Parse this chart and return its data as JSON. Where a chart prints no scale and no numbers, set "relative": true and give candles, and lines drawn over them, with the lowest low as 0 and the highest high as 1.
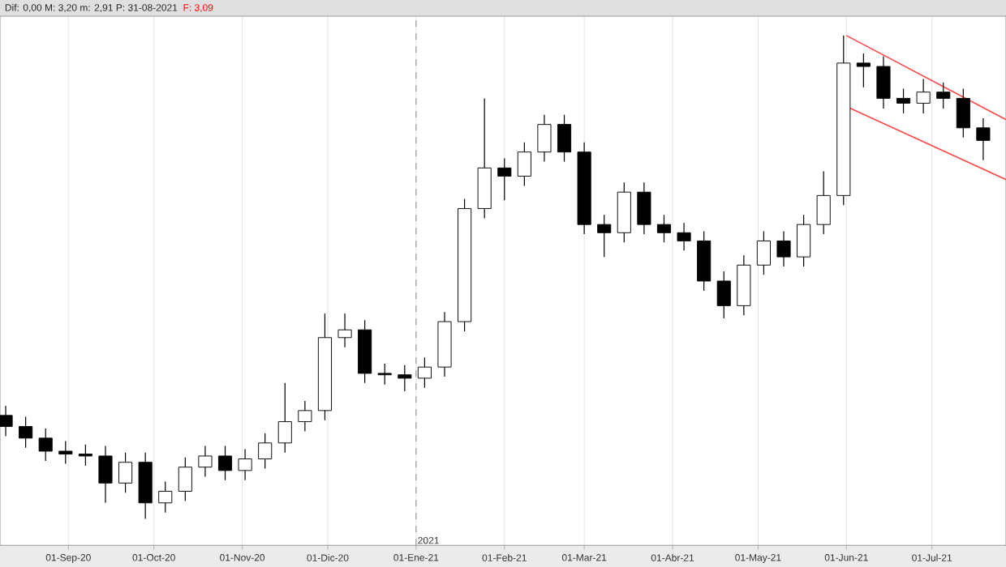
{
  "chart_data": {
    "type": "candlestick",
    "relative": true,
    "annotations": [
      "Dif: 0,00 M: 3,20 m: 2,91 P: 31-08-2021",
      "F: 3,09"
    ],
    "x": [
      "2020-08-10",
      "2020-08-17",
      "2020-08-24",
      "2020-08-31",
      "2020-09-07",
      "2020-09-14",
      "2020-09-21",
      "2020-09-28",
      "2020-10-05",
      "2020-10-12",
      "2020-10-19",
      "2020-10-26",
      "2020-11-02",
      "2020-11-09",
      "2020-11-16",
      "2020-11-23",
      "2020-11-30",
      "2020-12-07",
      "2020-12-14",
      "2020-12-21",
      "2020-12-28",
      "2021-01-04",
      "2021-01-11",
      "2021-01-18",
      "2021-01-25",
      "2021-02-01",
      "2021-02-08",
      "2021-02-15",
      "2021-02-22",
      "2021-03-01",
      "2021-03-08",
      "2021-03-15",
      "2021-03-22",
      "2021-03-29",
      "2021-04-05",
      "2021-04-12",
      "2021-04-19",
      "2021-04-26",
      "2021-05-03",
      "2021-05-10",
      "2021-05-17",
      "2021-05-24",
      "2021-05-31",
      "2021-06-07",
      "2021-06-14",
      "2021-06-21",
      "2021-06-28",
      "2021-07-05",
      "2021-07-12",
      "2021-07-19"
    ],
    "ohlc": [
      [
        0.214,
        0.234,
        0.171,
        0.191
      ],
      [
        0.191,
        0.211,
        0.147,
        0.167
      ],
      [
        0.167,
        0.187,
        0.12,
        0.14
      ],
      [
        0.14,
        0.161,
        0.114,
        0.134
      ],
      [
        0.134,
        0.154,
        0.11,
        0.13
      ],
      [
        0.13,
        0.151,
        0.033,
        0.074
      ],
      [
        0.074,
        0.137,
        0.054,
        0.117
      ],
      [
        0.117,
        0.137,
        0,
        0.033
      ],
      [
        0.033,
        0.077,
        0.013,
        0.057
      ],
      [
        0.057,
        0.127,
        0.037,
        0.107
      ],
      [
        0.107,
        0.151,
        0.087,
        0.13
      ],
      [
        0.13,
        0.151,
        0.08,
        0.1
      ],
      [
        0.1,
        0.144,
        0.08,
        0.124
      ],
      [
        0.124,
        0.177,
        0.104,
        0.157
      ],
      [
        0.157,
        0.281,
        0.137,
        0.201
      ],
      [
        0.201,
        0.244,
        0.181,
        0.224
      ],
      [
        0.224,
        0.425,
        0.204,
        0.375
      ],
      [
        0.375,
        0.425,
        0.355,
        0.391
      ],
      [
        0.391,
        0.411,
        0.281,
        0.301
      ],
      [
        0.301,
        0.321,
        0.278,
        0.298
      ],
      [
        0.298,
        0.318,
        0.264,
        0.291
      ],
      [
        0.291,
        0.334,
        0.271,
        0.314
      ],
      [
        0.314,
        0.428,
        0.294,
        0.408
      ],
      [
        0.408,
        0.662,
        0.388,
        0.642
      ],
      [
        0.642,
        0.87,
        0.622,
        0.726
      ],
      [
        0.726,
        0.746,
        0.659,
        0.709
      ],
      [
        0.709,
        0.779,
        0.689,
        0.759
      ],
      [
        0.759,
        0.836,
        0.739,
        0.816
      ],
      [
        0.816,
        0.836,
        0.739,
        0.759
      ],
      [
        0.759,
        0.779,
        0.589,
        0.609
      ],
      [
        0.609,
        0.629,
        0.542,
        0.592
      ],
      [
        0.592,
        0.696,
        0.572,
        0.676
      ],
      [
        0.676,
        0.696,
        0.589,
        0.609
      ],
      [
        0.609,
        0.629,
        0.572,
        0.592
      ],
      [
        0.592,
        0.612,
        0.555,
        0.575
      ],
      [
        0.575,
        0.595,
        0.472,
        0.492
      ],
      [
        0.492,
        0.512,
        0.415,
        0.441
      ],
      [
        0.441,
        0.545,
        0.421,
        0.525
      ],
      [
        0.525,
        0.595,
        0.505,
        0.575
      ],
      [
        0.575,
        0.595,
        0.522,
        0.542
      ],
      [
        0.542,
        0.629,
        0.522,
        0.609
      ],
      [
        0.609,
        0.719,
        0.589,
        0.669
      ],
      [
        0.669,
        1,
        0.649,
        0.943
      ],
      [
        0.943,
        0.963,
        0.893,
        0.936
      ],
      [
        0.936,
        0.957,
        0.849,
        0.87
      ],
      [
        0.87,
        0.89,
        0.839,
        0.86
      ],
      [
        0.86,
        0.91,
        0.839,
        0.883
      ],
      [
        0.883,
        0.903,
        0.849,
        0.87
      ],
      [
        0.87,
        0.89,
        0.789,
        0.809
      ],
      [
        0.809,
        0.829,
        0.742,
        0.783
      ]
    ],
    "series": [
      {
        "type": "line",
        "color": "#ff4a4a",
        "x": [
          "2021-06-01",
          "2021-07-27"
        ],
        "values": [
          1.0,
          0.826
        ]
      },
      {
        "type": "line",
        "color": "#ff4a4a",
        "x": [
          "2021-06-01",
          "2021-07-27"
        ],
        "values": [
          0.853,
          0.702
        ]
      }
    ],
    "ref_lines": [
      {
        "axis": "x",
        "value": "2021-01-01",
        "label": "2021",
        "line_style": "dashed"
      }
    ],
    "xlim": [
      "2020-08-08",
      "2021-07-27"
    ],
    "xticks": [
      {
        "value": "2020-09-01",
        "label": "01-Sep-20"
      },
      {
        "value": "2020-10-01",
        "label": "01-Oct-20"
      },
      {
        "value": "2020-11-01",
        "label": "01-Nov-20"
      },
      {
        "value": "2020-12-01",
        "label": "01-Dic-20"
      },
      {
        "value": "2021-01-01",
        "label": "01-Ene-21"
      },
      {
        "value": "2021-02-01",
        "label": "01-Feb-21"
      },
      {
        "value": "2021-03-01",
        "label": "01-Mar-21"
      },
      {
        "value": "2021-04-01",
        "label": "01-Abr-21"
      },
      {
        "value": "2021-05-01",
        "label": "01-May-21"
      },
      {
        "value": "2021-06-01",
        "label": "01-Jun-21"
      },
      {
        "value": "2021-07-01",
        "label": "01-Jul-21"
      }
    ],
    "grid": "x"
  }
}
